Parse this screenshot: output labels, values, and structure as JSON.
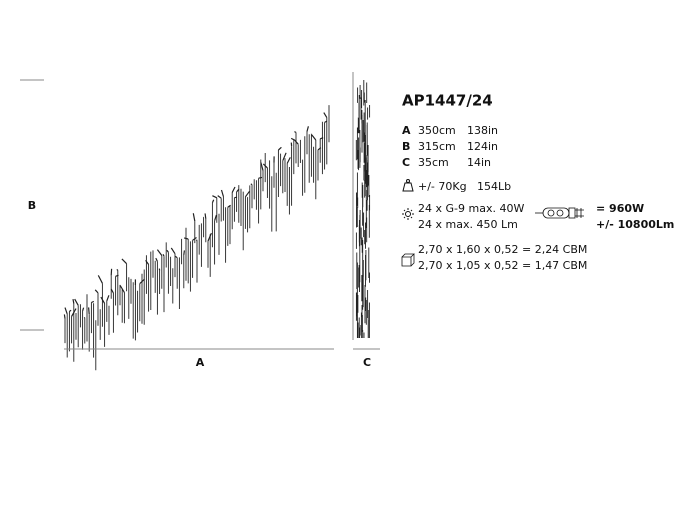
{
  "product": {
    "code": "AP1447/24"
  },
  "dimensions": [
    {
      "letter": "A",
      "cm": "350cm",
      "in": "138in"
    },
    {
      "letter": "B",
      "cm": "315cm",
      "in": "124in"
    },
    {
      "letter": "C",
      "cm": "35cm",
      "in": "14in"
    }
  ],
  "weight": {
    "kg": "+/- 70Kg",
    "lb": "154Lb"
  },
  "lighting": {
    "bulbs": "24 x G-9 max. 40W",
    "lumens": "24 x max. 450 Lm",
    "total_power": "= 960W",
    "total_lumens": "+/- 10800Lm"
  },
  "packaging": [
    "2,70 x 1,60 x 0,52 = 2,24 CBM",
    "2,70 x 1,05 x 0,52 = 1,47 CBM"
  ],
  "drawing_labels": {
    "width": "A",
    "height": "B",
    "depth": "C"
  }
}
